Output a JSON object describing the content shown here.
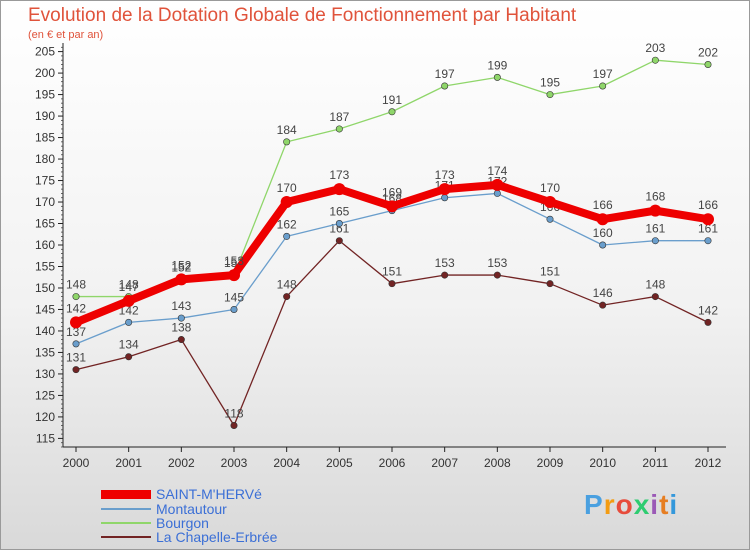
{
  "title": "Evolution de la Dotation Globale de Fonctionnement par Habitant",
  "subtitle": "(en € et par an)",
  "logo": {
    "letters": [
      "P",
      "r",
      "o",
      "x",
      "i",
      "t",
      "i"
    ],
    "colors": [
      "#4aa0e0",
      "#f39c12",
      "#e74c3c",
      "#2ecc71",
      "#9b59b6",
      "#e67e22",
      "#3498db"
    ]
  },
  "chart_data": {
    "type": "line",
    "title": "Evolution de la Dotation Globale de Fonctionnement par Habitant",
    "subtitle": "(en € et par an)",
    "x": [
      "2000",
      "2001",
      "2002",
      "2003",
      "2004",
      "2005",
      "2006",
      "2007",
      "2008",
      "2009",
      "2010",
      "2011",
      "2012"
    ],
    "y_ticks": [
      115,
      120,
      125,
      130,
      135,
      140,
      145,
      150,
      155,
      160,
      165,
      170,
      175,
      180,
      185,
      190,
      195,
      200,
      205
    ],
    "ylim": [
      113,
      207
    ],
    "grid": false,
    "legend_position": "bottom-left",
    "series": [
      {
        "name": "La Chapelle-Erbrée",
        "color": "#722424",
        "values": [
          131,
          134,
          138,
          118,
          148,
          161,
          151,
          153,
          153,
          151,
          146,
          148,
          142
        ]
      },
      {
        "name": "Bourgon",
        "color": "#8fd66a",
        "values": [
          148,
          148,
          152,
          153,
          184,
          187,
          191,
          197,
          199,
          195,
          197,
          203,
          202
        ]
      },
      {
        "name": "Montautour",
        "color": "#6a9ecc",
        "values": [
          137,
          142,
          143,
          145,
          162,
          165,
          168,
          171,
          172,
          166,
          160,
          161,
          161
        ]
      },
      {
        "name": "SAINT-M'HERVé",
        "color": "#ee0000",
        "values": [
          142,
          147,
          152,
          153,
          170,
          173,
          169,
          173,
          174,
          170,
          166,
          168,
          166
        ]
      }
    ],
    "legend": [
      "SAINT-M'HERVé",
      "Montautour",
      "Bourgon",
      "La Chapelle-Erbrée"
    ]
  }
}
